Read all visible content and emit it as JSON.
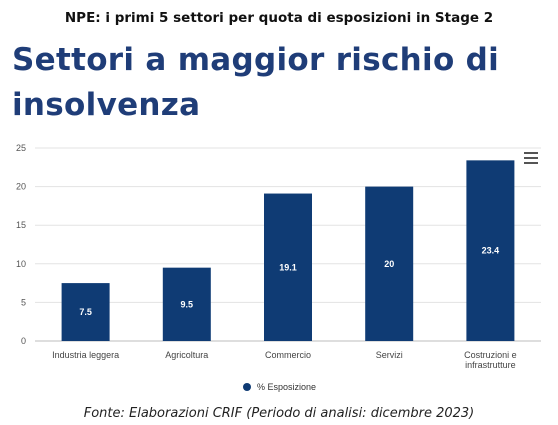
{
  "header": {
    "top_title": "NPE: i primi 5 settori per quota di esposizioni in Stage 2",
    "main_title": "Settori a maggior rischio di insolvenza"
  },
  "footer": {
    "source": "Fonte: Elaborazioni CRIF (Periodo di analisi: dicembre 2023)"
  },
  "menu": {
    "icon": "hamburger-menu-icon"
  },
  "colors": {
    "bar": "#0f3b74",
    "title": "#1f3d78",
    "grid": "#e3e3e3"
  },
  "chart_data": {
    "type": "bar",
    "categories": [
      "Industria leggera",
      "Agricoltura",
      "Commercio",
      "Servizi",
      "Costruzioni e infrastrutture"
    ],
    "category_lines": [
      [
        "Industria leggera"
      ],
      [
        "Agricoltura"
      ],
      [
        "Commercio"
      ],
      [
        "Servizi"
      ],
      [
        "Costruzioni e",
        "infrastrutture"
      ]
    ],
    "series": [
      {
        "name": "% Esposizione",
        "values": [
          7.5,
          9.5,
          19.1,
          20,
          23.4
        ],
        "labels": [
          "7.5",
          "9.5",
          "19.1",
          "20",
          "23.4"
        ]
      }
    ],
    "yticks": [
      0,
      5,
      10,
      15,
      20,
      25
    ],
    "ylim": [
      0,
      25
    ],
    "grid": true,
    "legend": "bottom-center"
  }
}
